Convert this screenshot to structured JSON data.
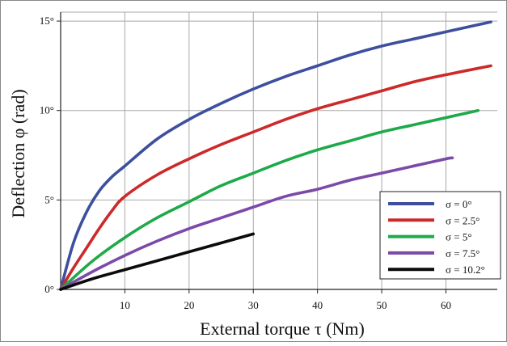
{
  "chart_data": {
    "type": "line",
    "title": "",
    "xlabel": "External torque τ (Nm)",
    "ylabel": "Deflection φ (rad)",
    "xlim": [
      0,
      68
    ],
    "ylim": [
      0,
      15.5
    ],
    "x_ticks": [
      10,
      20,
      30,
      40,
      50,
      60
    ],
    "x_tick_labels": [
      "10",
      "20",
      "30",
      "40",
      "50",
      "60"
    ],
    "y_ticks": [
      0,
      5,
      10,
      15
    ],
    "y_tick_labels": [
      "0°",
      "5°",
      "10°",
      "15°"
    ],
    "grid": true,
    "legend_position": "bottom-right",
    "series": [
      {
        "name": "σ = 0°",
        "color": "#3d4f9f",
        "points": [
          [
            0,
            0
          ],
          [
            2,
            2.6
          ],
          [
            4,
            4.3
          ],
          [
            6,
            5.5
          ],
          [
            8,
            6.3
          ],
          [
            10,
            6.9
          ],
          [
            15,
            8.4
          ],
          [
            20,
            9.5
          ],
          [
            25,
            10.4
          ],
          [
            30,
            11.2
          ],
          [
            35,
            11.9
          ],
          [
            40,
            12.5
          ],
          [
            45,
            13.1
          ],
          [
            50,
            13.6
          ],
          [
            55,
            14.0
          ],
          [
            60,
            14.4
          ],
          [
            67,
            14.95
          ]
        ]
      },
      {
        "name": "σ = 2.5°",
        "color": "#cc2a2a",
        "points": [
          [
            0,
            0
          ],
          [
            2,
            1.2
          ],
          [
            4,
            2.3
          ],
          [
            6,
            3.4
          ],
          [
            8,
            4.4
          ],
          [
            10,
            5.2
          ],
          [
            15,
            6.4
          ],
          [
            20,
            7.3
          ],
          [
            25,
            8.1
          ],
          [
            30,
            8.8
          ],
          [
            35,
            9.5
          ],
          [
            40,
            10.1
          ],
          [
            45,
            10.6
          ],
          [
            50,
            11.1
          ],
          [
            55,
            11.6
          ],
          [
            60,
            12.0
          ],
          [
            67,
            12.5
          ]
        ]
      },
      {
        "name": "σ = 5°",
        "color": "#1faa4a",
        "points": [
          [
            0,
            0
          ],
          [
            5,
            1.6
          ],
          [
            10,
            2.9
          ],
          [
            15,
            4.0
          ],
          [
            20,
            4.9
          ],
          [
            25,
            5.8
          ],
          [
            30,
            6.5
          ],
          [
            35,
            7.2
          ],
          [
            40,
            7.8
          ],
          [
            45,
            8.3
          ],
          [
            50,
            8.8
          ],
          [
            55,
            9.2
          ],
          [
            60,
            9.6
          ],
          [
            65,
            10.0
          ]
        ]
      },
      {
        "name": "σ = 7.5°",
        "color": "#7b4aa8",
        "points": [
          [
            0,
            0
          ],
          [
            5,
            1.0
          ],
          [
            10,
            1.9
          ],
          [
            15,
            2.7
          ],
          [
            20,
            3.4
          ],
          [
            25,
            4.0
          ],
          [
            30,
            4.6
          ],
          [
            35,
            5.2
          ],
          [
            40,
            5.6
          ],
          [
            45,
            6.1
          ],
          [
            50,
            6.5
          ],
          [
            55,
            6.9
          ],
          [
            60,
            7.3
          ],
          [
            61,
            7.35
          ]
        ]
      },
      {
        "name": "σ = 10.2°",
        "color": "#0b0b0b",
        "points": [
          [
            0,
            0
          ],
          [
            5,
            0.6
          ],
          [
            10,
            1.1
          ],
          [
            15,
            1.6
          ],
          [
            20,
            2.1
          ],
          [
            25,
            2.6
          ],
          [
            30,
            3.1
          ]
        ]
      }
    ]
  }
}
